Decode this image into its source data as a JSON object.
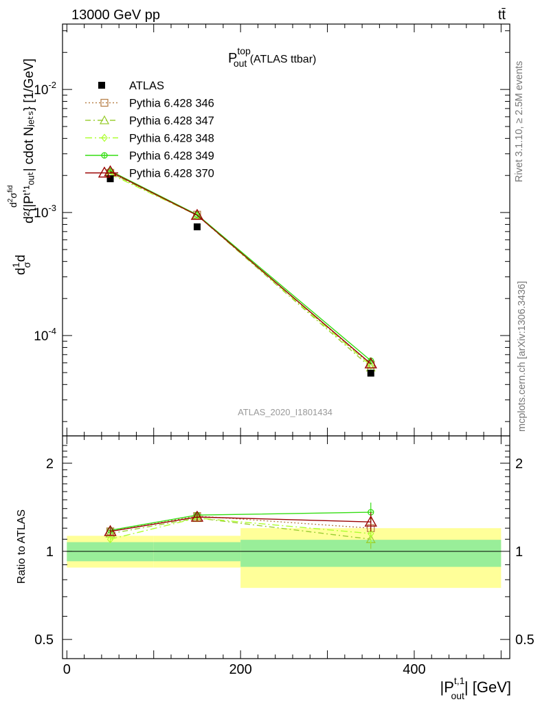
{
  "header": {
    "left": "13000 GeV pp",
    "right": "tt̄"
  },
  "title": {
    "main": "P",
    "sup": "top",
    "sub": "out",
    "rest": " (ATLAS ttbar)"
  },
  "side_labels": {
    "rivet": "Rivet 3.1.10, ≥ 2.5M events",
    "mcplots": "mcplots.cern.ch [arXiv:1306.3436]"
  },
  "analysis_tag": "ATLAS_2020_I1801434",
  "main_ylabel": "d²{|Pᵗʼ¹ₒᵤₜ| cdot Nⱼₑₜₛ} [1/GeV]",
  "ratio_ylabel": "Ratio to ATLAS",
  "xlabel": "|P^{t,1}_out| [GeV]",
  "chart_data": {
    "type": "line",
    "x_edges": [
      0,
      100,
      200,
      500
    ],
    "x": [
      50,
      150,
      350
    ],
    "xlim": [
      -5,
      510
    ],
    "ylim": [
      1.53e-05,
      0.034
    ],
    "yscale": "log",
    "ratio_ylim": [
      0.43,
      2.48
    ],
    "xticks": [
      0,
      200,
      400
    ],
    "yticks_main": [
      "10^-2",
      "10^-3",
      "10^-4"
    ],
    "yticks_ratio": [
      0.5,
      1,
      2
    ],
    "legend_position": "top-left",
    "data": {
      "name": "ATLAS",
      "values": [
        0.00188,
        0.000765,
        4.95e-05
      ],
      "color": "#000000"
    },
    "band": {
      "stat_frac": [
        [
          0.075,
          0.075
        ],
        [
          0.075,
          0.075
        ],
        [
          0.115,
          0.095
        ]
      ],
      "tot_frac": [
        [
          0.12,
          0.13
        ],
        [
          0.12,
          0.13
        ],
        [
          0.25,
          0.2
        ]
      ],
      "stat_color": "#99ee99",
      "tot_color": "#ffff99"
    },
    "series": [
      {
        "name": "Pythia 6.428 346",
        "values": [
          0.0021,
          0.00096,
          5.8e-05
        ],
        "ratio": [
          1.17,
          1.32,
          1.2
        ],
        "color": "#b8814a",
        "marker": "square",
        "dash": "2,3"
      },
      {
        "name": "Pythia 6.428 347",
        "values": [
          0.0021,
          0.00095,
          5.5e-05
        ],
        "ratio": [
          1.15,
          1.3,
          1.1
        ],
        "color": "#9acd32",
        "marker": "triangle",
        "dash": "8,4,2,4"
      },
      {
        "name": "Pythia 6.428 348",
        "values": [
          0.00205,
          0.00095,
          5.7e-05
        ],
        "ratio": [
          1.1,
          1.3,
          1.15
        ],
        "color": "#adff2f",
        "marker": "diamond",
        "dash": "10,4,2,4"
      },
      {
        "name": "Pythia 6.428 349",
        "values": [
          0.00218,
          0.00096,
          6.25e-05
        ],
        "ratio": [
          1.18,
          1.33,
          1.36
        ],
        "color": "#33dd11",
        "marker": "circle-cross",
        "dash": ""
      },
      {
        "name": "Pythia 6.428 370",
        "values": [
          0.00215,
          0.00095,
          5.9e-05
        ],
        "ratio": [
          1.17,
          1.31,
          1.26
        ],
        "color": "#990000",
        "marker": "triangle-open-big",
        "dash": ""
      }
    ]
  }
}
